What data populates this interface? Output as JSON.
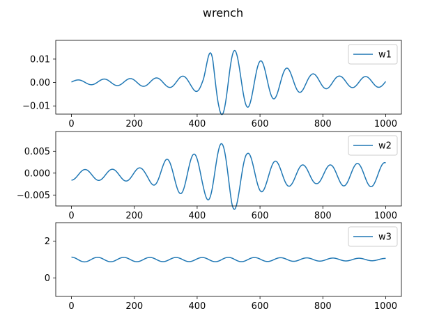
{
  "figure": {
    "title": "wrench",
    "background": "#ffffff",
    "line_color": "#1f77b4"
  },
  "chart_data": [
    {
      "type": "line",
      "series": [
        {
          "name": "w1",
          "color": "#1f77b4"
        }
      ],
      "x_range": [
        0,
        1000
      ],
      "xlim": [
        -50,
        1050
      ],
      "ylim": [
        -0.0135,
        0.018
      ],
      "xticks": [
        0,
        200,
        400,
        600,
        800,
        1000
      ],
      "xtick_labels": [
        "0",
        "200",
        "400",
        "600",
        "800",
        "1000"
      ],
      "yticks": [
        -0.01,
        0.0,
        0.01
      ],
      "ytick_labels": [
        "−0.01",
        "0.00",
        "0.01"
      ],
      "legend_position": "top-right",
      "grid": false,
      "signal": {
        "base": 0.0,
        "freq": 0.0755,
        "phase": 0.0,
        "envelope_times": [
          0,
          100,
          200,
          300,
          380,
          420,
          450,
          470,
          500,
          540,
          600,
          680,
          760,
          850,
          1000
        ],
        "envelope_values": [
          0.0008,
          0.0013,
          0.0016,
          0.002,
          0.003,
          0.005,
          0.0165,
          0.014,
          0.0145,
          0.012,
          0.009,
          0.006,
          0.0035,
          0.0025,
          0.0022
        ],
        "bias_times": [
          0,
          430,
          460,
          520,
          1000
        ],
        "bias_values": [
          0.0002,
          0.0,
          0.0005,
          0.0004,
          0.0002
        ]
      }
    },
    {
      "type": "line",
      "series": [
        {
          "name": "w2",
          "color": "#1f77b4"
        }
      ],
      "x_range": [
        0,
        1000
      ],
      "xlim": [
        -50,
        1050
      ],
      "ylim": [
        -0.0075,
        0.0095
      ],
      "xticks": [
        0,
        200,
        400,
        600,
        800,
        1000
      ],
      "xtick_labels": [
        "0",
        "200",
        "400",
        "600",
        "800",
        "1000"
      ],
      "yticks": [
        -0.005,
        0.0,
        0.005
      ],
      "ytick_labels": [
        "−0.005",
        "0.000",
        "0.005"
      ],
      "legend_position": "top-right",
      "grid": false,
      "signal": {
        "base": 0.0,
        "freq": 0.0725,
        "phase": -1.57,
        "envelope_times": [
          0,
          150,
          240,
          300,
          360,
          420,
          450,
          480,
          510,
          560,
          620,
          700,
          780,
          860,
          1000
        ],
        "envelope_values": [
          0.0012,
          0.0013,
          0.0017,
          0.0035,
          0.0045,
          0.005,
          0.0065,
          0.0072,
          0.0085,
          0.005,
          0.0035,
          0.0025,
          0.002,
          0.0025,
          0.0028
        ],
        "bias_times": [
          0,
          1000
        ],
        "bias_values": [
          -0.0004,
          -0.0004
        ]
      }
    },
    {
      "type": "line",
      "series": [
        {
          "name": "w3",
          "color": "#1f77b4"
        }
      ],
      "x_range": [
        0,
        1000
      ],
      "xlim": [
        -50,
        1050
      ],
      "ylim": [
        -1.0,
        3.0
      ],
      "xticks": [
        0,
        200,
        400,
        600,
        800,
        1000
      ],
      "xtick_labels": [
        "0",
        "200",
        "400",
        "600",
        "800",
        "1000"
      ],
      "yticks": [
        0,
        2
      ],
      "ytick_labels": [
        "0",
        "2"
      ],
      "legend_position": "top-right",
      "grid": false,
      "signal": {
        "base": 1.0,
        "freq": 0.0755,
        "phase": 1.57,
        "envelope_times": [
          0,
          100,
          400,
          500,
          1000
        ],
        "envelope_values": [
          0.13,
          0.12,
          0.11,
          0.12,
          0.06
        ],
        "bias_times": [
          0,
          1000
        ],
        "bias_values": [
          0.0,
          0.0
        ]
      }
    }
  ]
}
